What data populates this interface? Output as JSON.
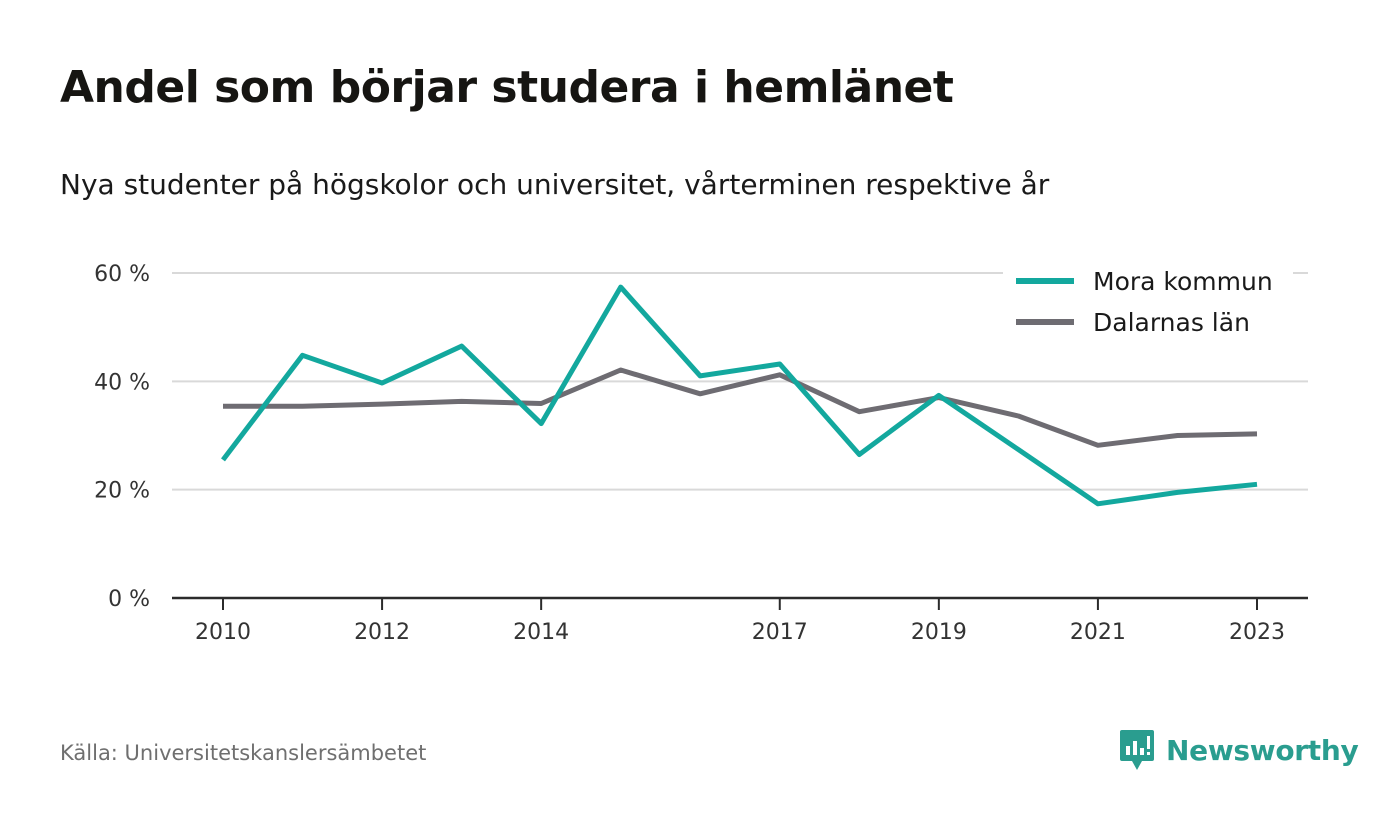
{
  "title": "Andel som börjar studera i hemlänet",
  "subtitle": "Nya studenter på högskolor och universitet, vårterminen respektive år",
  "source": "Källa: Universitetskanslersämbetet",
  "brand": {
    "name": "Newsworthy",
    "icon": "newsworthy-logo-icon",
    "color": "#2a9d8f"
  },
  "chart_data": {
    "type": "line",
    "x": [
      2010,
      2011,
      2012,
      2013,
      2014,
      2015,
      2016,
      2017,
      2018,
      2019,
      2020,
      2021,
      2022,
      2023
    ],
    "x_tick_values": [
      2010,
      2012,
      2014,
      2017,
      2019,
      2021,
      2023
    ],
    "x_tick_labels": [
      "2010",
      "2012",
      "2014",
      "2017",
      "2019",
      "2021",
      "2023"
    ],
    "y_tick_values": [
      0,
      20,
      40,
      60
    ],
    "y_tick_labels": [
      "0 %",
      "20 %",
      "40 %",
      "60 %"
    ],
    "ylim": [
      0,
      60
    ],
    "grid": true,
    "legend_position": "top-right",
    "series": [
      {
        "name": "Mora kommun",
        "color": "#13a89e",
        "values": [
          25.5,
          44.8,
          39.7,
          46.5,
          32.2,
          57.4,
          41.0,
          43.2,
          26.5,
          37.4,
          27.4,
          17.4,
          19.5,
          21.0
        ]
      },
      {
        "name": "Dalarnas län",
        "color": "#6e6c72",
        "values": [
          35.4,
          35.4,
          35.8,
          36.3,
          35.9,
          42.1,
          37.7,
          41.2,
          34.4,
          37.0,
          33.6,
          28.2,
          30.0,
          30.3
        ]
      }
    ]
  }
}
